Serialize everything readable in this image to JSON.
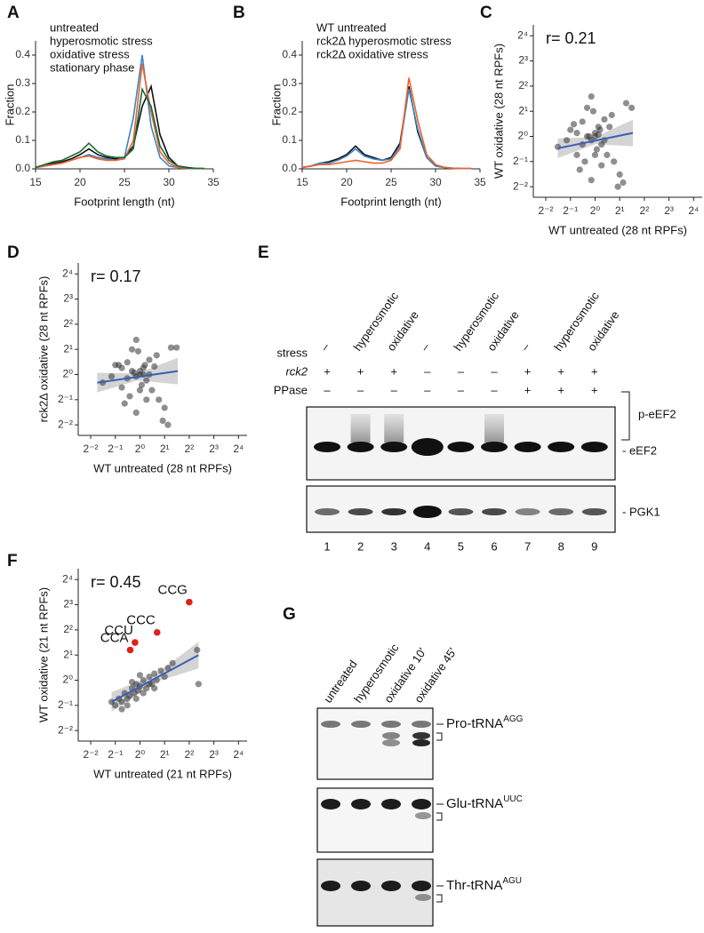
{
  "chart_data": [
    {
      "type": "line",
      "panel": "A",
      "x_label": "Footprint length (nt)",
      "y_label": "Fraction",
      "x": [
        15,
        16,
        17,
        18,
        19,
        20,
        21,
        22,
        23,
        24,
        25,
        26,
        27,
        28,
        29,
        30,
        31,
        32,
        33,
        34
      ],
      "xlim": [
        15,
        35
      ],
      "xticks": [
        15,
        20,
        25,
        30,
        35
      ],
      "ylim": [
        0,
        0.45
      ],
      "yticks": [
        {
          "value": 0,
          "label": "0.0"
        },
        0.1,
        0.2,
        0.3,
        0.4
      ],
      "series": [
        {
          "name": "untreated",
          "color": "#111111",
          "values": [
            0.005,
            0.01,
            0.02,
            0.025,
            0.035,
            0.05,
            0.07,
            0.05,
            0.04,
            0.035,
            0.04,
            0.08,
            0.22,
            0.29,
            0.12,
            0.04,
            0.01,
            0.005,
            0.002,
            0.001
          ]
        },
        {
          "name": "hyperosmotic stress",
          "color": "#3b84c4",
          "values": [
            0.005,
            0.01,
            0.015,
            0.02,
            0.03,
            0.04,
            0.05,
            0.04,
            0.035,
            0.03,
            0.04,
            0.18,
            0.4,
            0.15,
            0.04,
            0.01,
            0.005,
            0.002,
            0.001,
            0.001
          ]
        },
        {
          "name": "oxidative stress",
          "color": "#ea6330",
          "values": [
            0.005,
            0.01,
            0.015,
            0.02,
            0.03,
            0.04,
            0.045,
            0.035,
            0.03,
            0.03,
            0.035,
            0.1,
            0.37,
            0.2,
            0.06,
            0.02,
            0.005,
            0.002,
            0.001,
            0.001
          ]
        },
        {
          "name": "stationary phase",
          "color": "#1d6b32",
          "values": [
            0.005,
            0.015,
            0.025,
            0.03,
            0.045,
            0.06,
            0.09,
            0.06,
            0.045,
            0.04,
            0.04,
            0.07,
            0.28,
            0.22,
            0.08,
            0.03,
            0.01,
            0.003,
            0.001,
            0.001
          ]
        }
      ]
    },
    {
      "type": "line",
      "panel": "B",
      "x_label": "Footprint length (nt)",
      "y_label": "Fraction",
      "x": [
        15,
        16,
        17,
        18,
        19,
        20,
        21,
        22,
        23,
        24,
        25,
        26,
        27,
        28,
        29,
        30,
        31,
        32,
        33,
        34
      ],
      "xlim": [
        15,
        35
      ],
      "xticks": [
        15,
        20,
        25,
        30,
        35
      ],
      "ylim": [
        0,
        0.45
      ],
      "yticks": [
        {
          "value": 0,
          "label": "0.0"
        },
        0.1,
        0.2,
        0.3,
        0.4
      ],
      "series": [
        {
          "name": "WT untreated",
          "color": "#111111",
          "values": [
            0.005,
            0.01,
            0.02,
            0.025,
            0.035,
            0.05,
            0.08,
            0.05,
            0.04,
            0.03,
            0.04,
            0.09,
            0.29,
            0.13,
            0.04,
            0.01,
            0.005,
            0.002,
            0.001,
            0.001
          ]
        },
        {
          "name": "rck2Δ hyperosmotic stress",
          "color": "#3b84c4",
          "values": [
            0.005,
            0.01,
            0.02,
            0.02,
            0.03,
            0.045,
            0.07,
            0.045,
            0.035,
            0.03,
            0.035,
            0.08,
            0.28,
            0.14,
            0.04,
            0.01,
            0.005,
            0.002,
            0.001,
            0.001
          ]
        },
        {
          "name": "rck2Δ oxidative stress",
          "color": "#ea6330",
          "values": [
            0.005,
            0.01,
            0.015,
            0.015,
            0.02,
            0.025,
            0.03,
            0.025,
            0.02,
            0.02,
            0.03,
            0.07,
            0.32,
            0.17,
            0.05,
            0.015,
            0.005,
            0.002,
            0.001,
            0.001
          ]
        }
      ]
    },
    {
      "type": "scatter",
      "panel": "C",
      "x_label": "WT untreated (28 nt RPFs)",
      "y_label": "WT oxidative (28 nt RPFs)",
      "annotation": "r= 0.21",
      "xscale": "log",
      "yscale": "log",
      "xlim": [
        0.176,
        20.4
      ],
      "ylim": [
        0.187,
        21.6
      ],
      "xticks": [
        {
          "value": 0.25,
          "label": "2⁻²"
        },
        {
          "value": 0.5,
          "label": "2⁻¹"
        },
        {
          "value": 1,
          "label": "2⁰"
        },
        {
          "value": 2,
          "label": "2¹"
        },
        {
          "value": 4,
          "label": "2²"
        },
        {
          "value": 8,
          "label": "2³"
        },
        {
          "value": 16,
          "label": "2⁴"
        }
      ],
      "yticks": [
        {
          "value": 0.25,
          "label": "2⁻²"
        },
        {
          "value": 0.5,
          "label": "2⁻¹"
        },
        {
          "value": 1,
          "label": "2⁰"
        },
        {
          "value": 2,
          "label": "2¹"
        },
        {
          "value": 4,
          "label": "2²"
        },
        {
          "value": 8,
          "label": "2³"
        },
        {
          "value": 16,
          "label": "2⁴"
        }
      ],
      "point_color": "#333333",
      "fit_color": "#3a5fb5",
      "points": {
        "x": [
          0.5,
          0.6,
          0.7,
          0.8,
          0.9,
          1.0,
          1.1,
          1.2,
          1.3,
          0.75,
          0.85,
          0.95,
          1.05,
          1.15,
          0.65,
          1.4,
          1.6,
          2.0,
          2.4,
          0.45,
          0.55,
          0.9,
          1.0,
          1.1,
          0.8,
          1.3,
          1.7,
          0.7,
          1.2,
          2.2,
          0.35,
          0.6,
          1.0,
          1.5,
          0.9,
          2.8,
          1.9
        ],
        "y": [
          1.2,
          0.6,
          1.5,
          1.0,
          0.9,
          1.1,
          1.3,
          0.8,
          1.6,
          0.5,
          1.0,
          2.0,
          0.7,
          1.2,
          0.4,
          0.6,
          1.8,
          0.35,
          2.5,
          0.9,
          1.4,
          0.3,
          1.0,
          1.05,
          2.2,
          0.9,
          0.5,
          0.8,
          0.45,
          0.28,
          0.75,
          1.1,
          0.6,
          1.3,
          3.0,
          2.2,
          0.25
        ]
      },
      "fit": {
        "x": [
          0.35,
          2.9
        ],
        "y": [
          0.72,
          1.1
        ]
      }
    },
    {
      "type": "scatter",
      "panel": "D",
      "x_label": "WT untreated (28 nt RPFs)",
      "y_label": "rck2Δ oxidative (28 nt RPFs)",
      "annotation": "r= 0.17",
      "xscale": "log",
      "yscale": "log",
      "xlim": [
        0.176,
        20.4
      ],
      "ylim": [
        0.187,
        21.6
      ],
      "xticks": [
        {
          "value": 0.25,
          "label": "2⁻²"
        },
        {
          "value": 0.5,
          "label": "2⁻¹"
        },
        {
          "value": 1,
          "label": "2⁰"
        },
        {
          "value": 2,
          "label": "2¹"
        },
        {
          "value": 4,
          "label": "2²"
        },
        {
          "value": 8,
          "label": "2³"
        },
        {
          "value": 16,
          "label": "2⁴"
        }
      ],
      "yticks": [
        {
          "value": 0.25,
          "label": "2⁻²"
        },
        {
          "value": 0.5,
          "label": "2⁻¹"
        },
        {
          "value": 1,
          "label": "2⁰"
        },
        {
          "value": 2,
          "label": "2¹"
        },
        {
          "value": 4,
          "label": "2²"
        },
        {
          "value": 8,
          "label": "2³"
        },
        {
          "value": 16,
          "label": "2⁴"
        }
      ],
      "point_color": "#333333",
      "fit_color": "#3a5fb5",
      "points": {
        "x": [
          0.5,
          0.6,
          0.7,
          0.8,
          0.9,
          1.0,
          1.1,
          1.2,
          1.3,
          0.75,
          0.85,
          0.95,
          1.05,
          1.15,
          0.65,
          1.4,
          1.6,
          2.0,
          2.4,
          0.45,
          0.55,
          0.9,
          1.0,
          1.1,
          0.8,
          1.3,
          1.7,
          0.7,
          1.2,
          2.2,
          0.35,
          0.6,
          1.0,
          1.5,
          0.9,
          2.8,
          1.9
        ],
        "y": [
          1.3,
          0.7,
          1.4,
          1.1,
          0.95,
          1.0,
          1.2,
          0.85,
          1.5,
          0.55,
          1.05,
          1.9,
          0.75,
          1.3,
          0.45,
          0.65,
          1.7,
          0.4,
          2.1,
          0.95,
          1.3,
          0.35,
          1.1,
          1.0,
          2.0,
          1.0,
          0.5,
          0.9,
          0.5,
          0.25,
          0.8,
          1.2,
          0.65,
          1.25,
          2.6,
          2.1,
          0.28
        ]
      },
      "fit": {
        "x": [
          0.3,
          2.9
        ],
        "y": [
          0.8,
          1.1
        ]
      }
    },
    {
      "type": "scatter",
      "panel": "F",
      "x_label": "WT untreated (21 nt RPFs)",
      "y_label": "WT oxidative (21 nt RPFs)",
      "annotation": "r= 0.45",
      "xscale": "log",
      "yscale": "log",
      "xlim": [
        0.176,
        20.4
      ],
      "ylim": [
        0.187,
        21.6
      ],
      "xticks": [
        {
          "value": 0.25,
          "label": "2⁻²"
        },
        {
          "value": 0.5,
          "label": "2⁻¹"
        },
        {
          "value": 1,
          "label": "2⁰"
        },
        {
          "value": 2,
          "label": "2¹"
        },
        {
          "value": 4,
          "label": "2²"
        },
        {
          "value": 8,
          "label": "2³"
        },
        {
          "value": 16,
          "label": "2⁴"
        }
      ],
      "yticks": [
        {
          "value": 0.25,
          "label": "2⁻²"
        },
        {
          "value": 0.5,
          "label": "2⁻¹"
        },
        {
          "value": 1,
          "label": "2⁰"
        },
        {
          "value": 2,
          "label": "2¹"
        },
        {
          "value": 4,
          "label": "2²"
        },
        {
          "value": 8,
          "label": "2³"
        },
        {
          "value": 16,
          "label": "2⁴"
        }
      ],
      "point_color": "#333333",
      "fit_color": "#3a5fb5",
      "points": {
        "x": [
          0.5,
          0.55,
          0.6,
          0.65,
          0.7,
          0.75,
          0.8,
          0.85,
          0.9,
          0.95,
          1.0,
          1.1,
          1.2,
          1.3,
          1.4,
          1.5,
          1.6,
          1.8,
          2.0,
          2.2,
          2.5,
          0.6,
          0.7,
          0.8,
          0.9,
          1.0,
          1.1,
          1.3,
          1.5,
          5.0,
          5.2,
          0.45
        ],
        "y": [
          0.5,
          0.6,
          0.55,
          0.7,
          0.6,
          0.65,
          0.8,
          0.7,
          0.9,
          0.75,
          0.85,
          1.0,
          0.8,
          1.1,
          0.9,
          1.2,
          1.0,
          1.3,
          1.1,
          1.4,
          1.6,
          0.45,
          0.5,
          0.95,
          0.6,
          1.15,
          0.7,
          0.9,
          0.8,
          2.3,
          0.9,
          0.55
        ]
      },
      "fit": {
        "x": [
          0.45,
          5.2
        ],
        "y": [
          0.55,
          2.0
        ]
      },
      "labeled_points": {
        "color": "#e0201b",
        "labels": [
          "CCA",
          "CCU",
          "CCC",
          "CCG"
        ],
        "x": [
          0.76,
          0.87,
          1.62,
          4.0
        ],
        "y": [
          2.3,
          2.83,
          3.73,
          8.6
        ]
      }
    }
  ],
  "blots": [
    {
      "panel": "E",
      "row_labels": [
        "stress",
        "rck2",
        "PPase"
      ],
      "rows": [
        [
          "–",
          "hyperosmotic",
          "oxidative",
          "–",
          "hyperosmotic",
          "oxidative",
          "–",
          "hyperosmotic",
          "oxidative"
        ],
        [
          "+",
          "+",
          "+",
          "–",
          "–",
          "–",
          "+",
          "+",
          "+"
        ],
        [
          "–",
          "–",
          "–",
          "–",
          "–",
          "–",
          "+",
          "+",
          "+"
        ]
      ],
      "band_labels": [
        "p-eEF2",
        "- eEF2",
        "- PGK1"
      ],
      "lanes": [
        "1",
        "2",
        "3",
        "4",
        "5",
        "6",
        "7",
        "8",
        "9"
      ]
    },
    {
      "panel": "G",
      "lanes": [
        "untreated",
        "hyperosmotic",
        "oxidative 10'",
        "oxidative 45'"
      ],
      "probes": [
        {
          "name": "Pro-tRNA",
          "superscript": "AGG"
        },
        {
          "name": "Glu-tRNA",
          "superscript": "UUC"
        },
        {
          "name": "Thr-tRNA",
          "superscript": "AGU"
        }
      ]
    }
  ]
}
